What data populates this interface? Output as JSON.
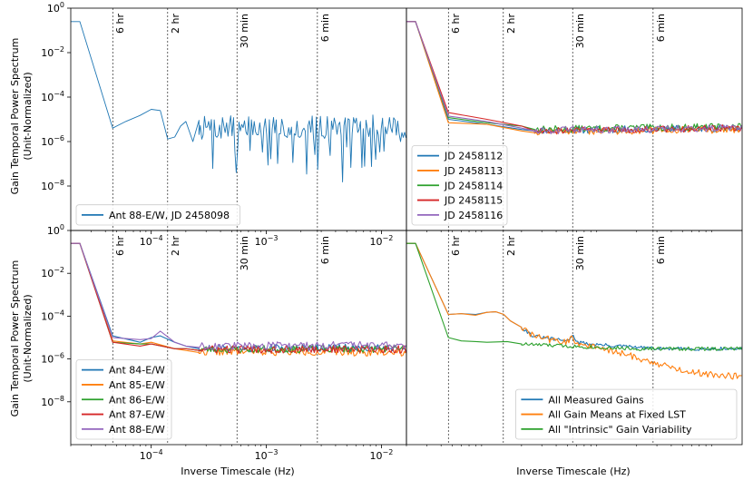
{
  "figure": {
    "ylabel_line1": "Gain Temporal Power Spectrum",
    "ylabel_line2": "(Unit-Normalized)",
    "xlabel": "Inverse Timescale (Hz)"
  },
  "colors": {
    "blue": "#1f77b4",
    "orange": "#ff7f0e",
    "green": "#2ca02c",
    "red": "#d62728",
    "purple": "#9467bd"
  },
  "chart_data": [
    {
      "type": "line",
      "panel": "top-left",
      "x_scale": "log",
      "y_scale": "log",
      "xlim": [
        2e-05,
        0.0165
      ],
      "ylim": [
        1e-10,
        1
      ],
      "xticks": [
        {
          "value": 0.0001,
          "base": "10",
          "exp": "−4"
        },
        {
          "value": 0.001,
          "base": "10",
          "exp": "−3"
        },
        {
          "value": 0.01,
          "base": "10",
          "exp": "−2"
        }
      ],
      "yticks": [
        {
          "value": 1,
          "base": "10",
          "exp": "0"
        },
        {
          "value": 0.01,
          "base": "10",
          "exp": "−2"
        },
        {
          "value": 0.0001,
          "base": "10",
          "exp": "−4"
        },
        {
          "value": 1e-06,
          "base": "10",
          "exp": "−6"
        },
        {
          "value": 1e-08,
          "base": "10",
          "exp": "−8"
        }
      ],
      "timescale_lines": [
        {
          "x": 4.63e-05,
          "label": "6 hr"
        },
        {
          "x": 0.000139,
          "label": "2 hr"
        },
        {
          "x": 0.000556,
          "label": "30 min"
        },
        {
          "x": 0.00278,
          "label": "6 min"
        }
      ],
      "legend": "bottom-left",
      "series": [
        {
          "name": "Ant 88-E/W, JD 2458098",
          "color_key": "blue",
          "x": [
            2e-05,
            2.4e-05,
            4.63e-05,
            6e-05,
            8e-05,
            0.0001,
            0.00012,
            0.000139,
            0.00016,
            0.00018,
            0.0002,
            0.00023,
            0.00026
          ],
          "y": [
            0.25,
            0.25,
            4e-06,
            8e-06,
            1.5e-05,
            2.8e-05,
            2.5e-05,
            1.3e-06,
            1.6e-06,
            5e-06,
            8e-06,
            1e-06,
            9e-06
          ],
          "noise": {
            "start": 0.00026,
            "end": 0.0165,
            "step": 1.028,
            "base_log": -5.4,
            "slope": 0.05,
            "amp": 0.55,
            "dip_prob": 0.18,
            "dip_depth": 2.4,
            "seed": 7
          }
        }
      ]
    },
    {
      "type": "line",
      "panel": "top-right",
      "x_scale": "log",
      "y_scale": "log",
      "xlim": [
        2e-05,
        0.0165
      ],
      "ylim": [
        1e-10,
        1
      ],
      "timescale_lines": [
        {
          "x": 4.63e-05,
          "label": "6 hr"
        },
        {
          "x": 0.000139,
          "label": "2 hr"
        },
        {
          "x": 0.000556,
          "label": "30 min"
        },
        {
          "x": 0.00278,
          "label": "6 min"
        }
      ],
      "legend": "bottom-left",
      "series": [
        {
          "name": "JD 2458112",
          "color_key": "blue",
          "x": [
            2e-05,
            2.4e-05,
            4.63e-05,
            0.0001,
            0.0002,
            0.00026
          ],
          "y": [
            0.25,
            0.25,
            1e-05,
            6e-06,
            3.5e-06,
            3e-06
          ],
          "noise": {
            "start": 0.00026,
            "end": 0.0165,
            "step": 1.03,
            "base_log": -5.5,
            "slope": 0.06,
            "amp": 0.16,
            "dip_prob": 0,
            "dip_depth": 0,
            "seed": 11
          }
        },
        {
          "name": "JD 2458113",
          "color_key": "orange",
          "x": [
            2e-05,
            2.4e-05,
            4.63e-05,
            0.0001,
            0.0002,
            0.00026
          ],
          "y": [
            0.25,
            0.25,
            7e-06,
            6e-06,
            3e-06,
            2.5e-06
          ],
          "noise": {
            "start": 0.00026,
            "end": 0.0165,
            "step": 1.03,
            "base_log": -5.55,
            "slope": 0.05,
            "amp": 0.16,
            "dip_prob": 0,
            "dip_depth": 0,
            "seed": 12
          }
        },
        {
          "name": "JD 2458114",
          "color_key": "green",
          "x": [
            2e-05,
            2.4e-05,
            4.63e-05,
            0.0001,
            0.0002,
            0.00026
          ],
          "y": [
            0.25,
            0.25,
            1.2e-05,
            7e-06,
            5e-06,
            3.5e-06
          ],
          "noise": {
            "start": 0.00026,
            "end": 0.0165,
            "step": 1.03,
            "base_log": -5.45,
            "slope": 0.07,
            "amp": 0.16,
            "dip_prob": 0,
            "dip_depth": 0,
            "seed": 13
          }
        },
        {
          "name": "JD 2458115",
          "color_key": "red",
          "x": [
            2e-05,
            2.4e-05,
            4.63e-05,
            0.0001,
            0.0002,
            0.00026
          ],
          "y": [
            0.25,
            0.25,
            2e-05,
            1e-05,
            5e-06,
            3e-06
          ],
          "noise": {
            "start": 0.00026,
            "end": 0.0165,
            "step": 1.03,
            "base_log": -5.5,
            "slope": 0.06,
            "amp": 0.16,
            "dip_prob": 0,
            "dip_depth": 0,
            "seed": 14
          }
        },
        {
          "name": "JD 2458116",
          "color_key": "purple",
          "x": [
            2e-05,
            2.4e-05,
            4.63e-05,
            0.0001,
            0.0002,
            0.00026
          ],
          "y": [
            0.25,
            0.25,
            1.4e-05,
            8e-06,
            4e-06,
            3e-06
          ],
          "noise": {
            "start": 0.00026,
            "end": 0.0165,
            "step": 1.03,
            "base_log": -5.5,
            "slope": 0.06,
            "amp": 0.16,
            "dip_prob": 0,
            "dip_depth": 0,
            "seed": 15
          }
        }
      ]
    },
    {
      "type": "line",
      "panel": "bottom-left",
      "x_scale": "log",
      "y_scale": "log",
      "xlim": [
        2e-05,
        0.0165
      ],
      "ylim": [
        1e-10,
        1
      ],
      "xticks": [
        {
          "value": 0.0001,
          "base": "10",
          "exp": "−4"
        },
        {
          "value": 0.001,
          "base": "10",
          "exp": "−3"
        },
        {
          "value": 0.01,
          "base": "10",
          "exp": "−2"
        }
      ],
      "yticks": [
        {
          "value": 1,
          "base": "10",
          "exp": "0"
        },
        {
          "value": 0.01,
          "base": "10",
          "exp": "−2"
        },
        {
          "value": 0.0001,
          "base": "10",
          "exp": "−4"
        },
        {
          "value": 1e-06,
          "base": "10",
          "exp": "−6"
        },
        {
          "value": 1e-08,
          "base": "10",
          "exp": "−8"
        }
      ],
      "timescale_lines": [
        {
          "x": 4.63e-05,
          "label": "6 hr"
        },
        {
          "x": 0.000139,
          "label": "2 hr"
        },
        {
          "x": 0.000556,
          "label": "30 min"
        },
        {
          "x": 0.00278,
          "label": "6 min"
        }
      ],
      "legend": "bottom-left",
      "series": [
        {
          "name": "Ant 84-E/W",
          "color_key": "blue",
          "x": [
            2e-05,
            2.4e-05,
            4.63e-05,
            8e-05,
            0.0001,
            0.00012,
            0.00016,
            0.0002,
            0.00026
          ],
          "y": [
            0.25,
            0.25,
            1.2e-05,
            6e-06,
            1e-05,
            1.2e-05,
            6e-06,
            4e-06,
            3e-06
          ],
          "noise": {
            "start": 0.00026,
            "end": 0.0165,
            "step": 1.03,
            "base_log": -5.5,
            "slope": 0.02,
            "amp": 0.18,
            "dip_prob": 0,
            "dip_depth": 0,
            "seed": 21
          }
        },
        {
          "name": "Ant 85-E/W",
          "color_key": "orange",
          "x": [
            2e-05,
            2.4e-05,
            4.63e-05,
            8e-05,
            0.0001,
            0.00016,
            0.0002,
            0.00026
          ],
          "y": [
            0.25,
            0.25,
            7e-06,
            5e-06,
            6e-06,
            3e-06,
            2.5e-06,
            2e-06
          ],
          "noise": {
            "start": 0.00026,
            "end": 0.0165,
            "step": 1.03,
            "base_log": -5.65,
            "slope": -0.02,
            "amp": 0.18,
            "dip_prob": 0,
            "dip_depth": 0,
            "seed": 22
          }
        },
        {
          "name": "Ant 86-E/W",
          "color_key": "green",
          "x": [
            2e-05,
            2.4e-05,
            4.63e-05,
            8e-05,
            0.0001,
            0.00016,
            0.0002,
            0.00026
          ],
          "y": [
            0.25,
            0.25,
            6e-06,
            5e-06,
            5e-06,
            3e-06,
            3e-06,
            2.5e-06
          ],
          "noise": {
            "start": 0.00026,
            "end": 0.0165,
            "step": 1.03,
            "base_log": -5.55,
            "slope": 0.02,
            "amp": 0.18,
            "dip_prob": 0,
            "dip_depth": 0,
            "seed": 23
          }
        },
        {
          "name": "Ant 87-E/W",
          "color_key": "red",
          "x": [
            2e-05,
            2.4e-05,
            4.63e-05,
            8e-05,
            0.0001,
            0.00016,
            0.0002,
            0.00026
          ],
          "y": [
            0.25,
            0.25,
            6e-06,
            4e-06,
            5e-06,
            3e-06,
            3e-06,
            2.5e-06
          ],
          "noise": {
            "start": 0.00026,
            "end": 0.0165,
            "step": 1.03,
            "base_log": -5.55,
            "slope": 0.0,
            "amp": 0.18,
            "dip_prob": 0,
            "dip_depth": 0,
            "seed": 24
          }
        },
        {
          "name": "Ant 88-E/W",
          "color_key": "purple",
          "x": [
            2e-05,
            2.4e-05,
            4.63e-05,
            8e-05,
            0.0001,
            0.00012,
            0.00016,
            0.0002,
            0.00026
          ],
          "y": [
            0.25,
            0.25,
            1e-05,
            8e-06,
            9e-06,
            2e-05,
            6e-06,
            4e-06,
            3.5e-06
          ],
          "noise": {
            "start": 0.00026,
            "end": 0.0165,
            "step": 1.03,
            "base_log": -5.4,
            "slope": 0.03,
            "amp": 0.18,
            "dip_prob": 0,
            "dip_depth": 0,
            "seed": 25
          }
        }
      ]
    },
    {
      "type": "line",
      "panel": "bottom-right",
      "x_scale": "log",
      "y_scale": "log",
      "xlim": [
        2e-05,
        0.0165
      ],
      "ylim": [
        1e-10,
        1
      ],
      "timescale_lines": [
        {
          "x": 4.63e-05,
          "label": "6 hr"
        },
        {
          "x": 0.000139,
          "label": "2 hr"
        },
        {
          "x": 0.000556,
          "label": "30 min"
        },
        {
          "x": 0.00278,
          "label": "6 min"
        }
      ],
      "legend": "bottom-right",
      "series": [
        {
          "name": "All Measured Gains",
          "color_key": "blue",
          "x": [
            2e-05,
            2.4e-05,
            4.63e-05,
            6e-05,
            8e-05,
            0.0001,
            0.00012,
            0.00014,
            0.00016,
            0.0002,
            0.00025,
            0.0003,
            0.0004,
            0.0005,
            0.00056,
            0.0006,
            0.0008,
            0.001,
            0.002,
            0.003,
            0.005,
            0.008,
            0.0165
          ],
          "y": [
            0.25,
            0.25,
            0.00012,
            0.00013,
            0.00012,
            0.00015,
            0.00016,
            0.00012,
            6e-05,
            3e-05,
            1.2e-05,
            1e-05,
            8e-06,
            7e-06,
            1.5e-05,
            6e-06,
            5e-06,
            4.5e-06,
            3.5e-06,
            3e-06,
            3e-06,
            3e-06,
            3e-06
          ],
          "noise": {
            "start": 0.0002,
            "end": 0.0165,
            "step": 1.03,
            "base_log": 0,
            "slope": 0,
            "amp": 0.08,
            "dip_prob": 0,
            "dip_depth": 0,
            "seed": 31
          }
        },
        {
          "name": "All Gain Means at Fixed LST",
          "color_key": "orange",
          "x": [
            2e-05,
            2.4e-05,
            4.63e-05,
            6e-05,
            8e-05,
            0.0001,
            0.00012,
            0.00014,
            0.00016,
            0.0002,
            0.00025,
            0.0003,
            0.0004,
            0.0005,
            0.00056,
            0.0006,
            0.0008,
            0.001,
            0.002,
            0.003,
            0.005,
            0.008,
            0.0165
          ],
          "y": [
            0.25,
            0.25,
            0.00012,
            0.00013,
            0.00011,
            0.00015,
            0.00016,
            0.00012,
            6e-05,
            3e-05,
            1.2e-05,
            1e-05,
            7e-06,
            6e-06,
            1.2e-05,
            5e-06,
            4e-06,
            3e-06,
            1.2e-06,
            6e-07,
            3e-07,
            2e-07,
            1.5e-07
          ],
          "noise": {
            "start": 0.0002,
            "end": 0.0165,
            "step": 1.03,
            "base_log": 0,
            "slope": 0,
            "amp": 0.16,
            "dip_prob": 0,
            "dip_depth": 0,
            "seed": 32
          }
        },
        {
          "name": "All \"Intrinsic\" Gain Variability",
          "color_key": "green",
          "x": [
            2e-05,
            2.4e-05,
            4.63e-05,
            6e-05,
            8e-05,
            0.0001,
            0.00015,
            0.0002,
            0.0003,
            0.0005,
            0.001,
            0.002,
            0.005,
            0.0165
          ],
          "y": [
            0.25,
            0.25,
            1e-05,
            7e-06,
            6.5e-06,
            6e-06,
            6.5e-06,
            5e-06,
            4.5e-06,
            4e-06,
            3.5e-06,
            3e-06,
            3e-06,
            3e-06
          ],
          "noise": {
            "start": 0.0002,
            "end": 0.0165,
            "step": 1.03,
            "base_log": 0,
            "slope": 0,
            "amp": 0.09,
            "dip_prob": 0,
            "dip_depth": 0,
            "seed": 33
          }
        }
      ]
    }
  ]
}
